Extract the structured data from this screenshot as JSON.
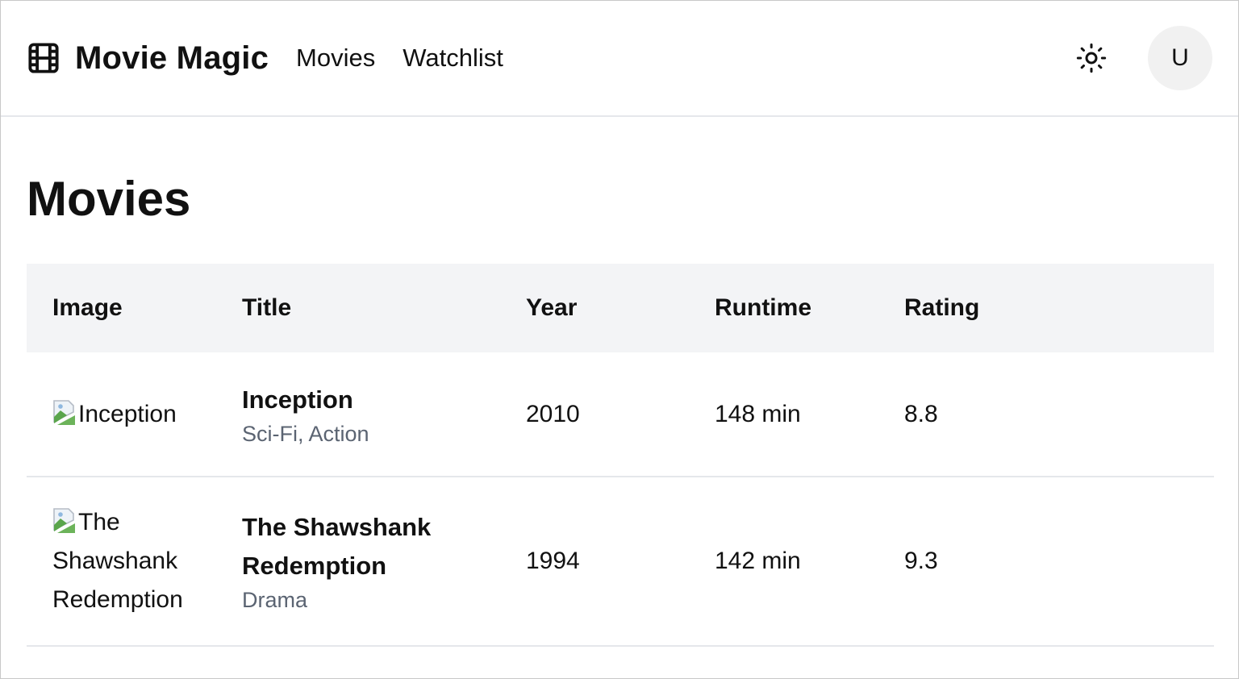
{
  "header": {
    "brand": "Movie Magic",
    "nav": [
      {
        "label": "Movies"
      },
      {
        "label": "Watchlist"
      }
    ],
    "avatar_initial": "U"
  },
  "page": {
    "title": "Movies"
  },
  "table": {
    "columns": [
      "Image",
      "Title",
      "Year",
      "Runtime",
      "Rating"
    ],
    "rows": [
      {
        "image_alt": "Inception",
        "title": "Inception",
        "genres": "Sci-Fi, Action",
        "year": "2010",
        "runtime": "148 min",
        "rating": "8.8"
      },
      {
        "image_alt": "The Shawshank Redemption",
        "title": "The Shawshank Redemption",
        "genres": "Drama",
        "year": "1994",
        "runtime": "142 min",
        "rating": "9.3"
      }
    ]
  },
  "icons": {
    "logo": "film-icon",
    "theme": "sun-icon",
    "broken_image": "broken-image-icon"
  },
  "colors": {
    "header_row_bg": "#f3f4f6",
    "genre_text": "#5b6472",
    "divider": "#e5e7eb",
    "avatar_bg": "#f1f1f1"
  }
}
